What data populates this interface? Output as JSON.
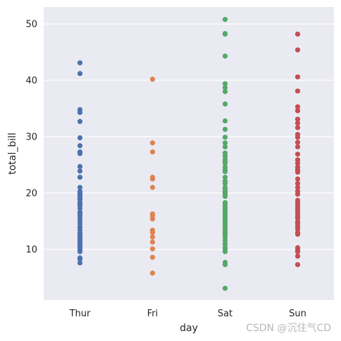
{
  "chart_data": {
    "type": "scatter",
    "subtype": "strip",
    "xlabel": "day",
    "ylabel": "total_bill",
    "categories": [
      "Thur",
      "Fri",
      "Sat",
      "Sun"
    ],
    "ylim": [
      1,
      53
    ],
    "yticks": [
      10,
      20,
      30,
      40,
      50
    ],
    "grid": true,
    "legend": "none",
    "colors": {
      "Thur": "#4c72b0",
      "Fri": "#dd8452",
      "Sat": "#55a868",
      "Sun": "#c44e52"
    },
    "background": "#eaeaf2",
    "series": [
      {
        "category": "Thur",
        "values": [
          43.1,
          41.2,
          34.8,
          34.3,
          32.7,
          29.8,
          28.4,
          27.3,
          27.0,
          24.7,
          23.9,
          22.8,
          21.0,
          20.3,
          20.0,
          19.8,
          19.4,
          19.1,
          18.8,
          18.3,
          18.0,
          17.8,
          17.3,
          16.6,
          16.3,
          16.0,
          15.5,
          15.0,
          14.5,
          13.9,
          13.5,
          13.0,
          12.7,
          12.5,
          12.2,
          11.9,
          11.6,
          11.3,
          11.0,
          10.6,
          10.3,
          10.0,
          9.6,
          8.5,
          8.3,
          7.6
        ]
      },
      {
        "category": "Fri",
        "values": [
          40.2,
          28.9,
          27.3,
          22.8,
          22.5,
          21.0,
          16.3,
          16.0,
          15.4,
          13.4,
          13.0,
          12.2,
          11.3,
          10.1,
          8.6,
          5.8
        ]
      },
      {
        "category": "Sat",
        "values": [
          50.8,
          48.3,
          48.2,
          44.3,
          39.4,
          38.7,
          38.0,
          35.8,
          32.8,
          31.3,
          29.9,
          28.9,
          28.2,
          27.1,
          26.6,
          26.0,
          25.6,
          25.3,
          24.6,
          24.1,
          23.8,
          22.8,
          22.1,
          21.7,
          21.0,
          20.7,
          20.3,
          20.1,
          19.8,
          19.4,
          18.3,
          17.9,
          17.5,
          17.1,
          16.8,
          16.4,
          16.0,
          15.6,
          15.1,
          14.7,
          14.3,
          13.9,
          13.4,
          13.0,
          12.6,
          12.2,
          11.6,
          11.0,
          10.5,
          10.1,
          9.6,
          7.7,
          7.3,
          3.1
        ]
      },
      {
        "category": "Sun",
        "values": [
          48.2,
          45.4,
          40.6,
          38.1,
          35.3,
          34.6,
          33.1,
          32.4,
          31.6,
          30.4,
          29.9,
          29.0,
          28.2,
          26.9,
          25.9,
          25.3,
          24.6,
          24.1,
          23.7,
          22.5,
          21.7,
          21.0,
          20.3,
          19.8,
          18.7,
          18.2,
          17.8,
          17.3,
          16.9,
          16.5,
          16.0,
          15.6,
          15.0,
          14.6,
          14.1,
          13.6,
          13.0,
          12.7,
          10.3,
          10.0,
          9.6,
          8.8,
          7.3
        ]
      }
    ]
  },
  "watermark": "CSDN @沉住气CD"
}
